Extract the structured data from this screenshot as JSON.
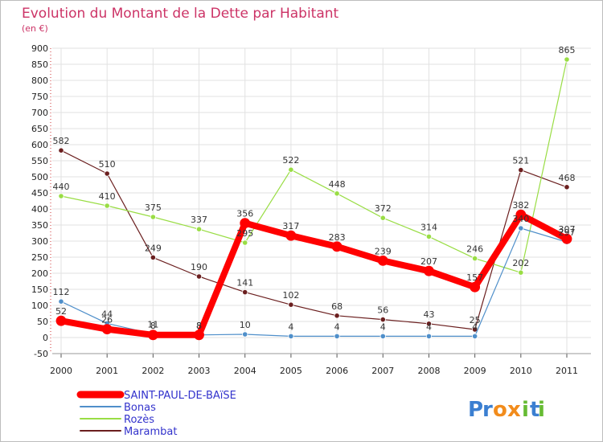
{
  "chart_data": {
    "type": "line",
    "title": "Evolution du Montant de la Dette par Habitant",
    "subtitle": "(en €)",
    "xlabel": "",
    "ylabel": "",
    "x": [
      "2000",
      "2001",
      "2002",
      "2003",
      "2004",
      "2005",
      "2006",
      "2007",
      "2008",
      "2009",
      "2010",
      "2011"
    ],
    "ylim": [
      -50,
      900
    ],
    "yticks": [
      -50,
      0,
      50,
      100,
      150,
      200,
      250,
      300,
      350,
      400,
      450,
      500,
      550,
      600,
      650,
      700,
      750,
      800,
      850,
      900
    ],
    "grid": true,
    "legend_position": "bottom-left",
    "series": [
      {
        "name": "Marambat",
        "color": "#6b1f1f",
        "values": [
          582,
          510,
          249,
          190,
          141,
          102,
          68,
          56,
          43,
          25,
          521,
          468
        ]
      },
      {
        "name": "Rozès",
        "color": "#99dd44",
        "values": [
          440,
          410,
          375,
          337,
          295,
          522,
          448,
          372,
          314,
          246,
          202,
          865
        ]
      },
      {
        "name": "Bonas",
        "color": "#4f8fca",
        "values": [
          112,
          44,
          11,
          8,
          10,
          4,
          4,
          4,
          4,
          4,
          340,
          297
        ]
      },
      {
        "name": "SAINT-PAUL-DE-BAïSE",
        "color": "#ff0000",
        "values": [
          52,
          26,
          8,
          8,
          356,
          317,
          283,
          239,
          207,
          157,
          382,
          307
        ]
      }
    ],
    "data_labels": {
      "Marambat": [
        "582",
        "510",
        "249",
        "190",
        "141",
        "102",
        "68",
        "56",
        "43",
        "25",
        "521",
        "468"
      ],
      "Rozès": [
        "440",
        "410",
        "375",
        "337",
        "295",
        "522",
        "448",
        "372",
        "314",
        "246",
        "202",
        "865"
      ],
      "Bonas": [
        "112",
        "44",
        "11",
        "8",
        "10",
        "4",
        "4",
        "4",
        "4",
        "4",
        "340",
        "297"
      ],
      "SAINT-PAUL-DE-BAïSE": [
        "52",
        "26",
        "8",
        "8",
        "356",
        "317",
        "283",
        "239",
        "207",
        "157",
        "382",
        "307"
      ]
    }
  },
  "legend": [
    {
      "label": "SAINT-PAUL-DE-BAïSE",
      "color": "#ff0000"
    },
    {
      "label": "Bonas",
      "color": "#4f8fca"
    },
    {
      "label": "Rozès",
      "color": "#99dd44"
    },
    {
      "label": "Marambat",
      "color": "#6b1f1f"
    }
  ],
  "brand": {
    "text": "Proxiti"
  }
}
